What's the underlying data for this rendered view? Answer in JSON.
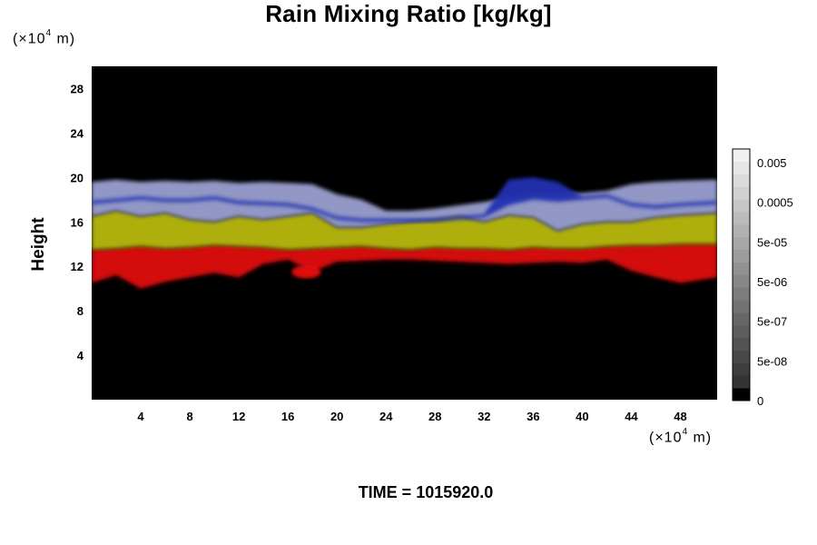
{
  "chart_data": {
    "type": "heatmap",
    "title": "Rain Mixing Ratio [kg/kg]",
    "ylabel": "Height",
    "x_unit": {
      "prefix": "(×10",
      "exponent": "4",
      "suffix": " m)"
    },
    "y_unit": {
      "prefix": "(×10",
      "exponent": "4",
      "suffix": " m)"
    },
    "xlim": [
      0,
      51
    ],
    "ylim": [
      0,
      30
    ],
    "x_ticks": [
      4,
      8,
      12,
      16,
      20,
      24,
      28,
      32,
      36,
      40,
      44,
      48
    ],
    "y_ticks": [
      4,
      8,
      12,
      16,
      20,
      24,
      28
    ],
    "background_color": "#000000",
    "colorbar": {
      "labels": [
        "0.005",
        "0.0005",
        "5e-05",
        "5e-06",
        "5e-07",
        "5e-08",
        "0"
      ]
    },
    "layers": [
      {
        "color": "#e01010",
        "bottom": [
          10.5,
          11.2,
          10.0,
          10.6,
          11.0,
          11.4,
          11.0,
          12.2,
          12.6,
          11.5,
          12.4,
          12.5,
          12.6,
          12.6,
          12.5,
          12.4,
          12.3,
          12.2,
          12.3,
          12.4,
          12.3,
          12.6,
          11.6,
          11.0,
          10.5,
          11.0
        ],
        "top": [
          13.5,
          13.6,
          13.8,
          13.6,
          13.7,
          13.9,
          13.8,
          13.7,
          13.5,
          13.6,
          13.7,
          13.8,
          13.6,
          13.5,
          13.7,
          13.6,
          13.6,
          13.5,
          13.7,
          13.6,
          13.6,
          13.8,
          13.9,
          13.9,
          14.0,
          14.0
        ]
      },
      {
        "color": "#b8b810",
        "bottom": [
          13.5,
          13.6,
          13.8,
          13.6,
          13.7,
          13.9,
          13.8,
          13.7,
          13.5,
          13.6,
          13.7,
          13.8,
          13.6,
          13.5,
          13.7,
          13.6,
          13.6,
          13.5,
          13.7,
          13.6,
          13.6,
          13.8,
          13.9,
          13.9,
          14.0,
          14.0
        ],
        "top": [
          16.5,
          17.0,
          16.5,
          16.8,
          16.2,
          16.0,
          16.5,
          16.2,
          16.5,
          16.8,
          15.5,
          15.5,
          15.8,
          16.0,
          16.2,
          16.5,
          16.0,
          16.6,
          16.4,
          15.2,
          15.8,
          16.0,
          16.0,
          16.4,
          16.6,
          16.8
        ]
      },
      {
        "color": "#9aa0d0",
        "bottom": [
          16.5,
          17.0,
          16.5,
          16.8,
          16.2,
          16.0,
          16.5,
          16.2,
          16.5,
          16.8,
          15.5,
          15.5,
          15.8,
          16.0,
          16.2,
          16.5,
          16.0,
          16.6,
          16.4,
          15.2,
          15.8,
          16.0,
          16.0,
          16.4,
          16.6,
          16.8
        ],
        "top": [
          19.6,
          19.8,
          19.6,
          19.7,
          19.6,
          19.7,
          19.5,
          19.6,
          19.5,
          19.4,
          18.5,
          18.0,
          17.0,
          17.0,
          17.2,
          17.5,
          17.8,
          18.2,
          18.5,
          18.5,
          18.6,
          18.8,
          19.4,
          19.6,
          19.7,
          19.8
        ]
      },
      {
        "color": "#2030b0",
        "bottom": [
          17.6,
          17.8,
          18.0,
          17.8,
          17.8,
          18.0,
          17.6,
          17.5,
          17.4,
          17.0,
          16.2,
          16.0,
          16.0,
          16.0,
          16.0,
          16.2,
          16.4,
          17.5,
          18.0,
          17.8,
          18.0,
          18.2,
          17.4,
          17.2,
          17.4,
          17.6
        ],
        "top": [
          17.9,
          18.1,
          18.3,
          18.1,
          18.1,
          18.3,
          17.9,
          17.8,
          17.7,
          17.3,
          16.5,
          16.3,
          16.3,
          16.3,
          16.3,
          16.5,
          16.7,
          19.8,
          20.0,
          19.6,
          18.3,
          18.5,
          17.7,
          17.5,
          17.7,
          17.9
        ]
      }
    ],
    "layer_x": [
      0,
      2,
      4,
      6,
      8,
      10,
      12,
      14,
      16,
      18,
      20,
      22,
      24,
      26,
      28,
      30,
      32,
      34,
      36,
      38,
      40,
      42,
      44,
      46,
      48,
      51
    ],
    "blobs": [
      {
        "color": "#e01010",
        "x": 17.5,
        "y": 11.5,
        "rx": 1.2,
        "ry": 0.6
      }
    ]
  },
  "footer": {
    "time_label": "TIME = 1015920.0"
  }
}
